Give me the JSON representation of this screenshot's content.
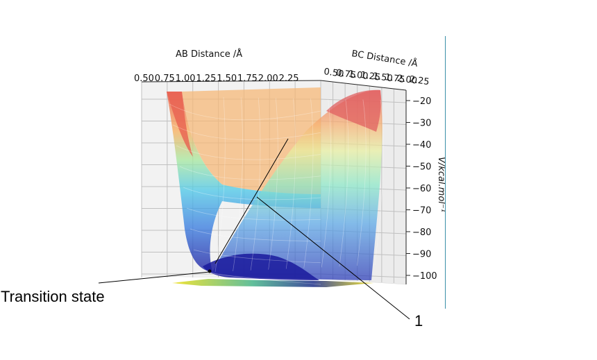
{
  "chart_data": {
    "type": "surface3d",
    "xlabel": "AB Distance /Å",
    "ylabel": "BC Distance /Å",
    "zlabel": "V/kcal.mol⁻¹",
    "x_ticks": [
      "0.50",
      "0.75",
      "1.00",
      "1.25",
      "1.50",
      "1.75",
      "2.00",
      "2.25"
    ],
    "y_ticks": [
      "0.50",
      "0.75",
      "1.00",
      "1.25",
      "1.50",
      "1.75",
      "2.00",
      "2.25"
    ],
    "z_ticks": [
      -20,
      -30,
      -40,
      -50,
      -60,
      -70,
      -80,
      -90,
      -100
    ],
    "zlim": [
      -105,
      -17
    ],
    "grid": true,
    "colormap": "jet",
    "annotations": [
      {
        "label": "Transition state"
      },
      {
        "label": "1"
      }
    ]
  },
  "colors": {
    "axis_line": "#3a8fa8",
    "pane": "#f2f2f2",
    "grid": "#b8b8b8",
    "surface_low": "#1a1aa0",
    "surface_high": "#e05050"
  }
}
